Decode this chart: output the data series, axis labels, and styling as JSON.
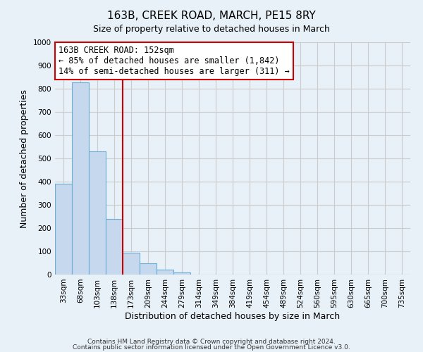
{
  "title": "163B, CREEK ROAD, MARCH, PE15 8RY",
  "subtitle": "Size of property relative to detached houses in March",
  "xlabel": "Distribution of detached houses by size in March",
  "ylabel": "Number of detached properties",
  "footer_line1": "Contains HM Land Registry data © Crown copyright and database right 2024.",
  "footer_line2": "Contains public sector information licensed under the Open Government Licence v3.0.",
  "bin_labels": [
    "33sqm",
    "68sqm",
    "103sqm",
    "138sqm",
    "173sqm",
    "209sqm",
    "244sqm",
    "279sqm",
    "314sqm",
    "349sqm",
    "384sqm",
    "419sqm",
    "454sqm",
    "489sqm",
    "524sqm",
    "560sqm",
    "595sqm",
    "630sqm",
    "665sqm",
    "700sqm",
    "735sqm"
  ],
  "bin_values": [
    390,
    828,
    530,
    240,
    95,
    50,
    20,
    10,
    0,
    0,
    0,
    0,
    0,
    0,
    0,
    0,
    0,
    0,
    0,
    0,
    0
  ],
  "bar_color": "#c5d8ed",
  "bar_edge_color": "#6aaed6",
  "vline_x_index": 4,
  "vline_color": "#cc0000",
  "annotation_title": "163B CREEK ROAD: 152sqm",
  "annotation_line1": "← 85% of detached houses are smaller (1,842)",
  "annotation_line2": "14% of semi-detached houses are larger (311) →",
  "annotation_box_facecolor": "white",
  "annotation_box_edgecolor": "#cc0000",
  "ylim": [
    0,
    1000
  ],
  "yticks": [
    0,
    100,
    200,
    300,
    400,
    500,
    600,
    700,
    800,
    900,
    1000
  ],
  "figsize": [
    6.0,
    5.0
  ],
  "dpi": 100,
  "grid_color": "#cccccc",
  "bg_color": "#e8f0f8",
  "title_fontsize": 11,
  "subtitle_fontsize": 9,
  "ylabel_fontsize": 9,
  "xlabel_fontsize": 9,
  "tick_fontsize": 7.5,
  "footer_fontsize": 6.5
}
